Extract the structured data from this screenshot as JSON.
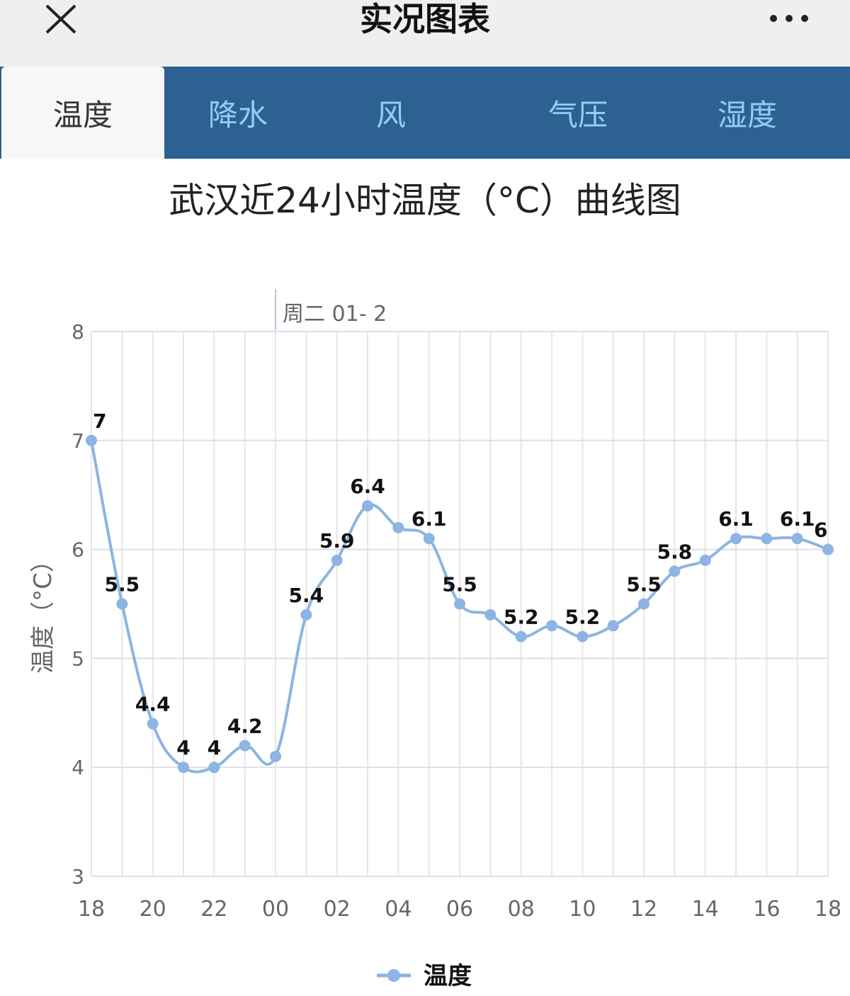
{
  "header": {
    "title": "实况图表"
  },
  "tabs": [
    {
      "label": "温度",
      "active": true
    },
    {
      "label": "降水",
      "active": false
    },
    {
      "label": "风",
      "active": false
    },
    {
      "label": "气压",
      "active": false
    },
    {
      "label": "湿度",
      "active": false
    }
  ],
  "chart_data": {
    "type": "line",
    "title": "武汉近24小时温度（°C）曲线图",
    "ylabel": "温度（°C）",
    "xlabel": "",
    "ylim": [
      3,
      8
    ],
    "yticks": [
      "3",
      "4",
      "5",
      "6",
      "7",
      "8"
    ],
    "x": [
      "18",
      "19",
      "20",
      "21",
      "22",
      "23",
      "00",
      "01",
      "02",
      "03",
      "04",
      "05",
      "06",
      "07",
      "08",
      "09",
      "10",
      "11",
      "12",
      "13",
      "14",
      "15",
      "16",
      "17",
      "18"
    ],
    "xtick_labels": [
      "18",
      "20",
      "22",
      "00",
      "02",
      "04",
      "06",
      "08",
      "10",
      "12",
      "14",
      "16",
      "18"
    ],
    "day_marker": {
      "label": "周二 01- 2",
      "at": "00"
    },
    "series": [
      {
        "name": "温度",
        "color": "#8db4e2",
        "values": [
          7,
          5.5,
          4.4,
          4,
          4,
          4.2,
          4.1,
          5.4,
          5.9,
          6.4,
          6.2,
          6.1,
          5.5,
          5.4,
          5.2,
          5.3,
          5.2,
          5.3,
          5.5,
          5.8,
          5.9,
          6.1,
          6.1,
          6.1,
          6
        ],
        "labels": [
          "7",
          "5.5",
          "4.4",
          "4",
          "4",
          "4.2",
          "",
          "5.4",
          "5.9",
          "6.4",
          "",
          "6.1",
          "5.5",
          "",
          "5.2",
          "",
          "5.2",
          "",
          "5.5",
          "5.8",
          "",
          "6.1",
          "",
          "6.1",
          "6"
        ]
      }
    ],
    "legend": {
      "position": "bottom-center"
    },
    "grid": true
  }
}
